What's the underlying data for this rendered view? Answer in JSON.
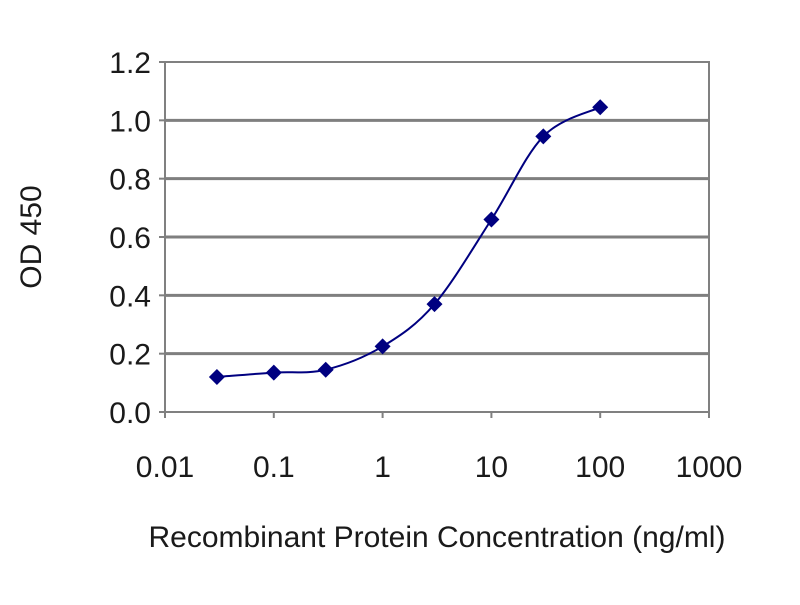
{
  "chart_data": {
    "type": "line",
    "title": "",
    "xlabel": "Recombinant Protein Concentration (ng/ml)",
    "ylabel": "OD 450",
    "xscale": "log",
    "xlim": [
      0.01,
      1000
    ],
    "ylim": [
      0.0,
      1.2
    ],
    "xticks": [
      0.01,
      0.1,
      1,
      10,
      100,
      1000
    ],
    "xtick_labels": [
      "0.01",
      "0.1",
      "1",
      "10",
      "100",
      "1000"
    ],
    "yticks": [
      0.0,
      0.2,
      0.4,
      0.6,
      0.8,
      1.0,
      1.2
    ],
    "ytick_labels": [
      "0.0",
      "0.2",
      "0.4",
      "0.6",
      "0.8",
      "1.0",
      "1.2"
    ],
    "grid": "horizontal",
    "series": [
      {
        "color": "#000080",
        "marker": "diamond",
        "x": [
          0.03,
          0.1,
          0.3,
          1,
          3,
          10,
          30,
          100
        ],
        "y": [
          0.12,
          0.135,
          0.145,
          0.225,
          0.37,
          0.66,
          0.945,
          1.045
        ]
      }
    ]
  }
}
